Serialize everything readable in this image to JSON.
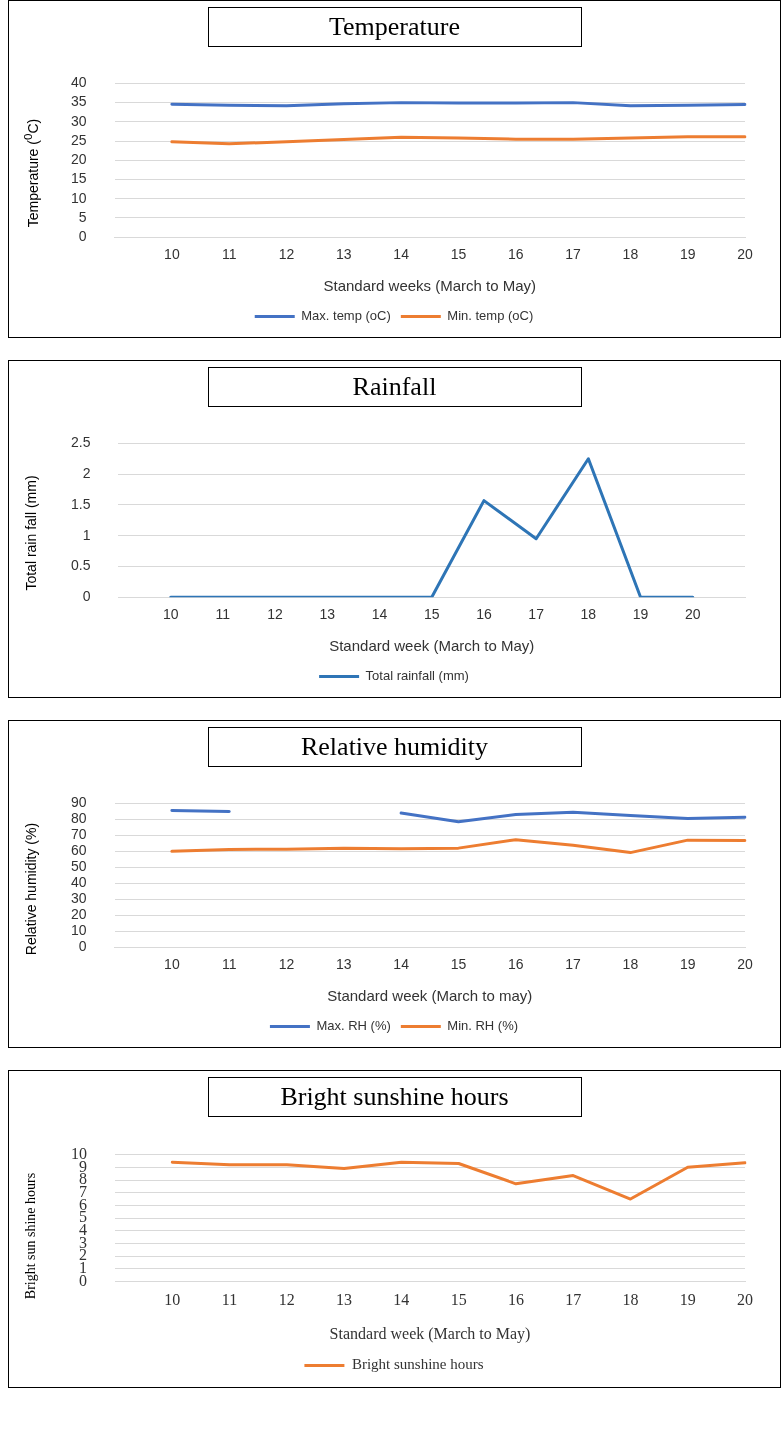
{
  "chart_data": [
    {
      "type": "line",
      "title": "Temperature",
      "xlabel": "Standard weeks (March to May)",
      "ylabel": "Temperature ($^{0}$C)",
      "categories": [
        null,
        "10",
        "11",
        "12",
        "13",
        "14",
        "15",
        "16",
        "17",
        "18",
        "19",
        "20"
      ],
      "series": [
        {
          "name": "Max. temp (oC)",
          "color": "#4472c4",
          "values": [
            null,
            34.6,
            34.3,
            34.2,
            34.7,
            35.0,
            34.9,
            34.9,
            35.0,
            34.2,
            34.3,
            34.5
          ]
        },
        {
          "name": "Min. temp (oC)",
          "color": "#ed7d31",
          "values": [
            null,
            24.8,
            24.3,
            24.8,
            25.4,
            26.0,
            25.8,
            25.5,
            25.5,
            25.8,
            26.1,
            26.1
          ]
        }
      ],
      "ylim": [
        0,
        40
      ],
      "yticks": [
        0,
        5,
        10,
        15,
        20,
        25,
        30,
        35,
        40
      ],
      "grid": "y",
      "legend": "bottom",
      "marker": "none",
      "line_style": "solid"
    },
    {
      "type": "line",
      "title": "Rainfall",
      "xlabel": "Standard week (March to May)",
      "ylabel": "Total rain fall (mm)",
      "categories": [
        null,
        "10",
        "11",
        "12",
        "13",
        "14",
        "15",
        "16",
        "17",
        "18",
        "19",
        "20",
        null
      ],
      "series": [
        {
          "name": "Total rainfall (mm)",
          "color": "#2e75b6",
          "values": [
            null,
            0,
            0,
            0,
            0,
            0,
            0,
            1.57,
            0.95,
            2.25,
            0,
            0,
            null
          ]
        }
      ],
      "ylim": [
        0,
        2.5
      ],
      "yticks": [
        0,
        0.5,
        1,
        1.5,
        2,
        2.5
      ],
      "grid": "y",
      "legend": "bottom",
      "marker": "none",
      "line_style": "solid"
    },
    {
      "type": "line",
      "title": "Relative humidity",
      "xlabel": "Standard week (March to may)",
      "ylabel": "Relative humidity (%)",
      "categories": [
        null,
        "10",
        "11",
        "12",
        "13",
        "14",
        "15",
        "16",
        "17",
        "18",
        "19",
        "20"
      ],
      "series": [
        {
          "name": "Max. RH (%)",
          "color": "#4472c4",
          "values": [
            null,
            85.5,
            85,
            null,
            null,
            84,
            78.5,
            83,
            84.5,
            82.5,
            80.5,
            81.3
          ]
        },
        {
          "name": "Min. RH (%)",
          "color": "#ed7d31",
          "values": [
            null,
            60,
            61.2,
            61.3,
            62,
            61.6,
            62,
            67.3,
            63.8,
            59.2,
            67,
            66.8
          ]
        }
      ],
      "ylim": [
        0,
        90
      ],
      "yticks": [
        0,
        10,
        20,
        30,
        40,
        50,
        60,
        70,
        80,
        90
      ],
      "grid": "y",
      "legend": "bottom",
      "marker": "none",
      "line_style": "solid"
    },
    {
      "type": "line",
      "title": "Bright sunshine hours",
      "xlabel": "Standard week (March to May)",
      "ylabel": "Bright sun shine hours",
      "categories": [
        null,
        "10",
        "11",
        "12",
        "13",
        "14",
        "15",
        "16",
        "17",
        "18",
        "19",
        "20"
      ],
      "series": [
        {
          "name": "Bright sunshine hours",
          "color": "#ed7d31",
          "values": [
            null,
            9.4,
            9.2,
            9.2,
            8.9,
            9.4,
            9.3,
            7.7,
            8.35,
            6.5,
            9.0,
            9.35
          ]
        }
      ],
      "ylim": [
        0,
        10
      ],
      "yticks": [
        0,
        1,
        2,
        3,
        4,
        5,
        6,
        7,
        8,
        9,
        10
      ],
      "grid": "y",
      "legend": "bottom",
      "marker": "none",
      "line_style": "solid"
    }
  ]
}
